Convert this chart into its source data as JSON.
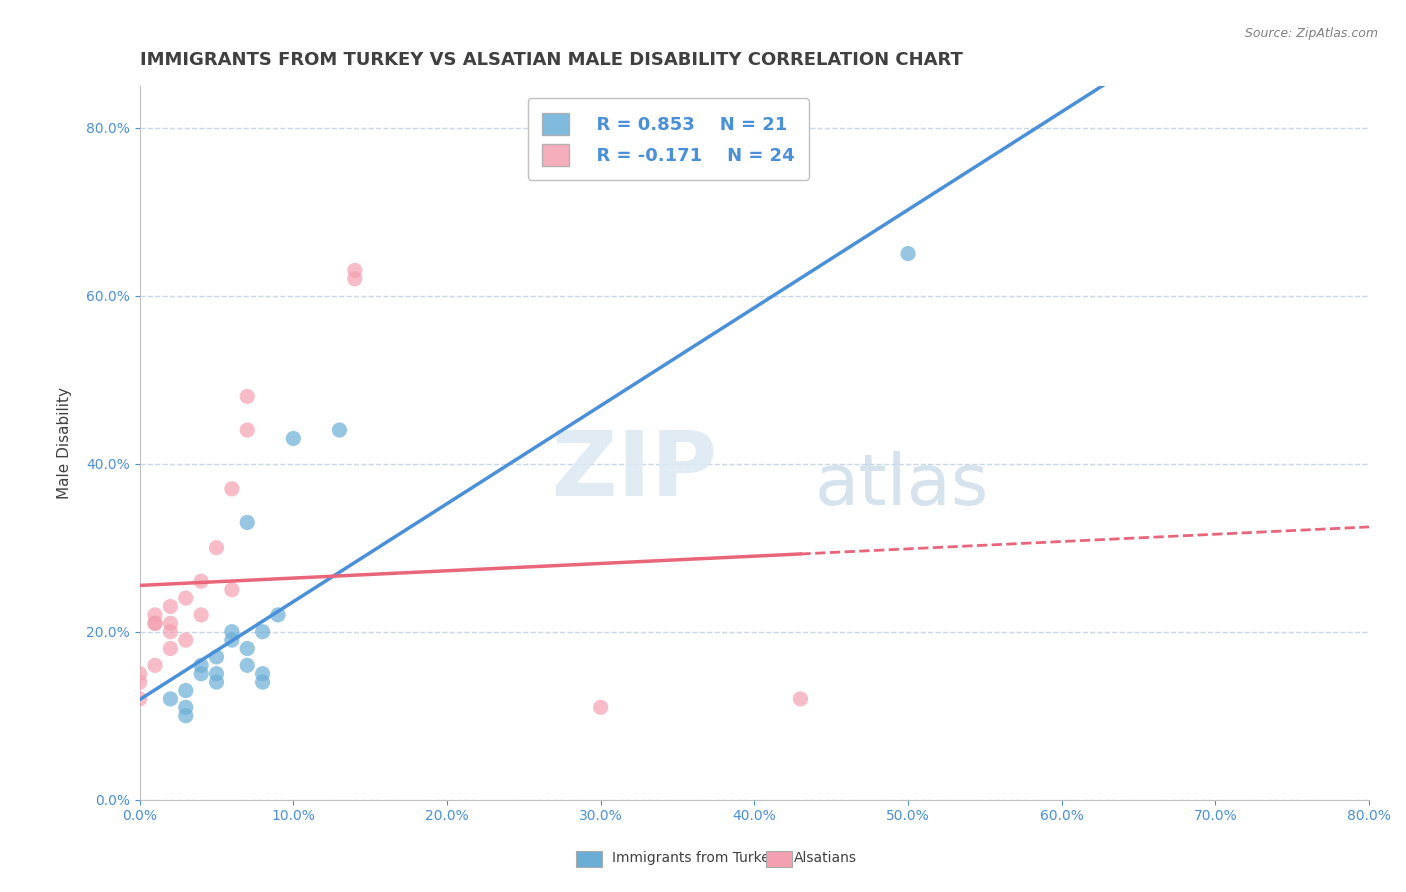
{
  "title": "IMMIGRANTS FROM TURKEY VS ALSATIAN MALE DISABILITY CORRELATION CHART",
  "source": "Source: ZipAtlas.com",
  "xlabel": "",
  "ylabel": "Male Disability",
  "xlim": [
    0.0,
    0.8
  ],
  "ylim": [
    0.0,
    0.85
  ],
  "legend_blue_r": "R = 0.853",
  "legend_blue_n": "N = 21",
  "legend_pink_r": "R = -0.171",
  "legend_pink_n": "N = 24",
  "blue_color": "#6aaed6",
  "pink_color": "#f4a0b0",
  "line_blue": "#4a90d9",
  "line_pink": "#e8657a",
  "blue_scatter_x": [
    0.02,
    0.03,
    0.03,
    0.03,
    0.04,
    0.04,
    0.05,
    0.05,
    0.05,
    0.06,
    0.06,
    0.07,
    0.07,
    0.07,
    0.08,
    0.08,
    0.08,
    0.09,
    0.1,
    0.13,
    0.5
  ],
  "blue_scatter_y": [
    0.12,
    0.13,
    0.11,
    0.1,
    0.15,
    0.16,
    0.14,
    0.17,
    0.15,
    0.19,
    0.2,
    0.16,
    0.33,
    0.18,
    0.15,
    0.14,
    0.2,
    0.22,
    0.43,
    0.44,
    0.65
  ],
  "pink_scatter_x": [
    0.0,
    0.0,
    0.0,
    0.01,
    0.01,
    0.01,
    0.01,
    0.02,
    0.02,
    0.02,
    0.02,
    0.03,
    0.03,
    0.04,
    0.04,
    0.05,
    0.06,
    0.06,
    0.07,
    0.07,
    0.14,
    0.14,
    0.3,
    0.43
  ],
  "pink_scatter_y": [
    0.14,
    0.15,
    0.12,
    0.16,
    0.21,
    0.22,
    0.21,
    0.18,
    0.2,
    0.21,
    0.23,
    0.19,
    0.24,
    0.22,
    0.26,
    0.3,
    0.25,
    0.37,
    0.44,
    0.48,
    0.63,
    0.62,
    0.11,
    0.12
  ],
  "background_color": "#ffffff",
  "grid_color": "#c8d8e8",
  "title_color": "#404040",
  "source_color": "#808080"
}
